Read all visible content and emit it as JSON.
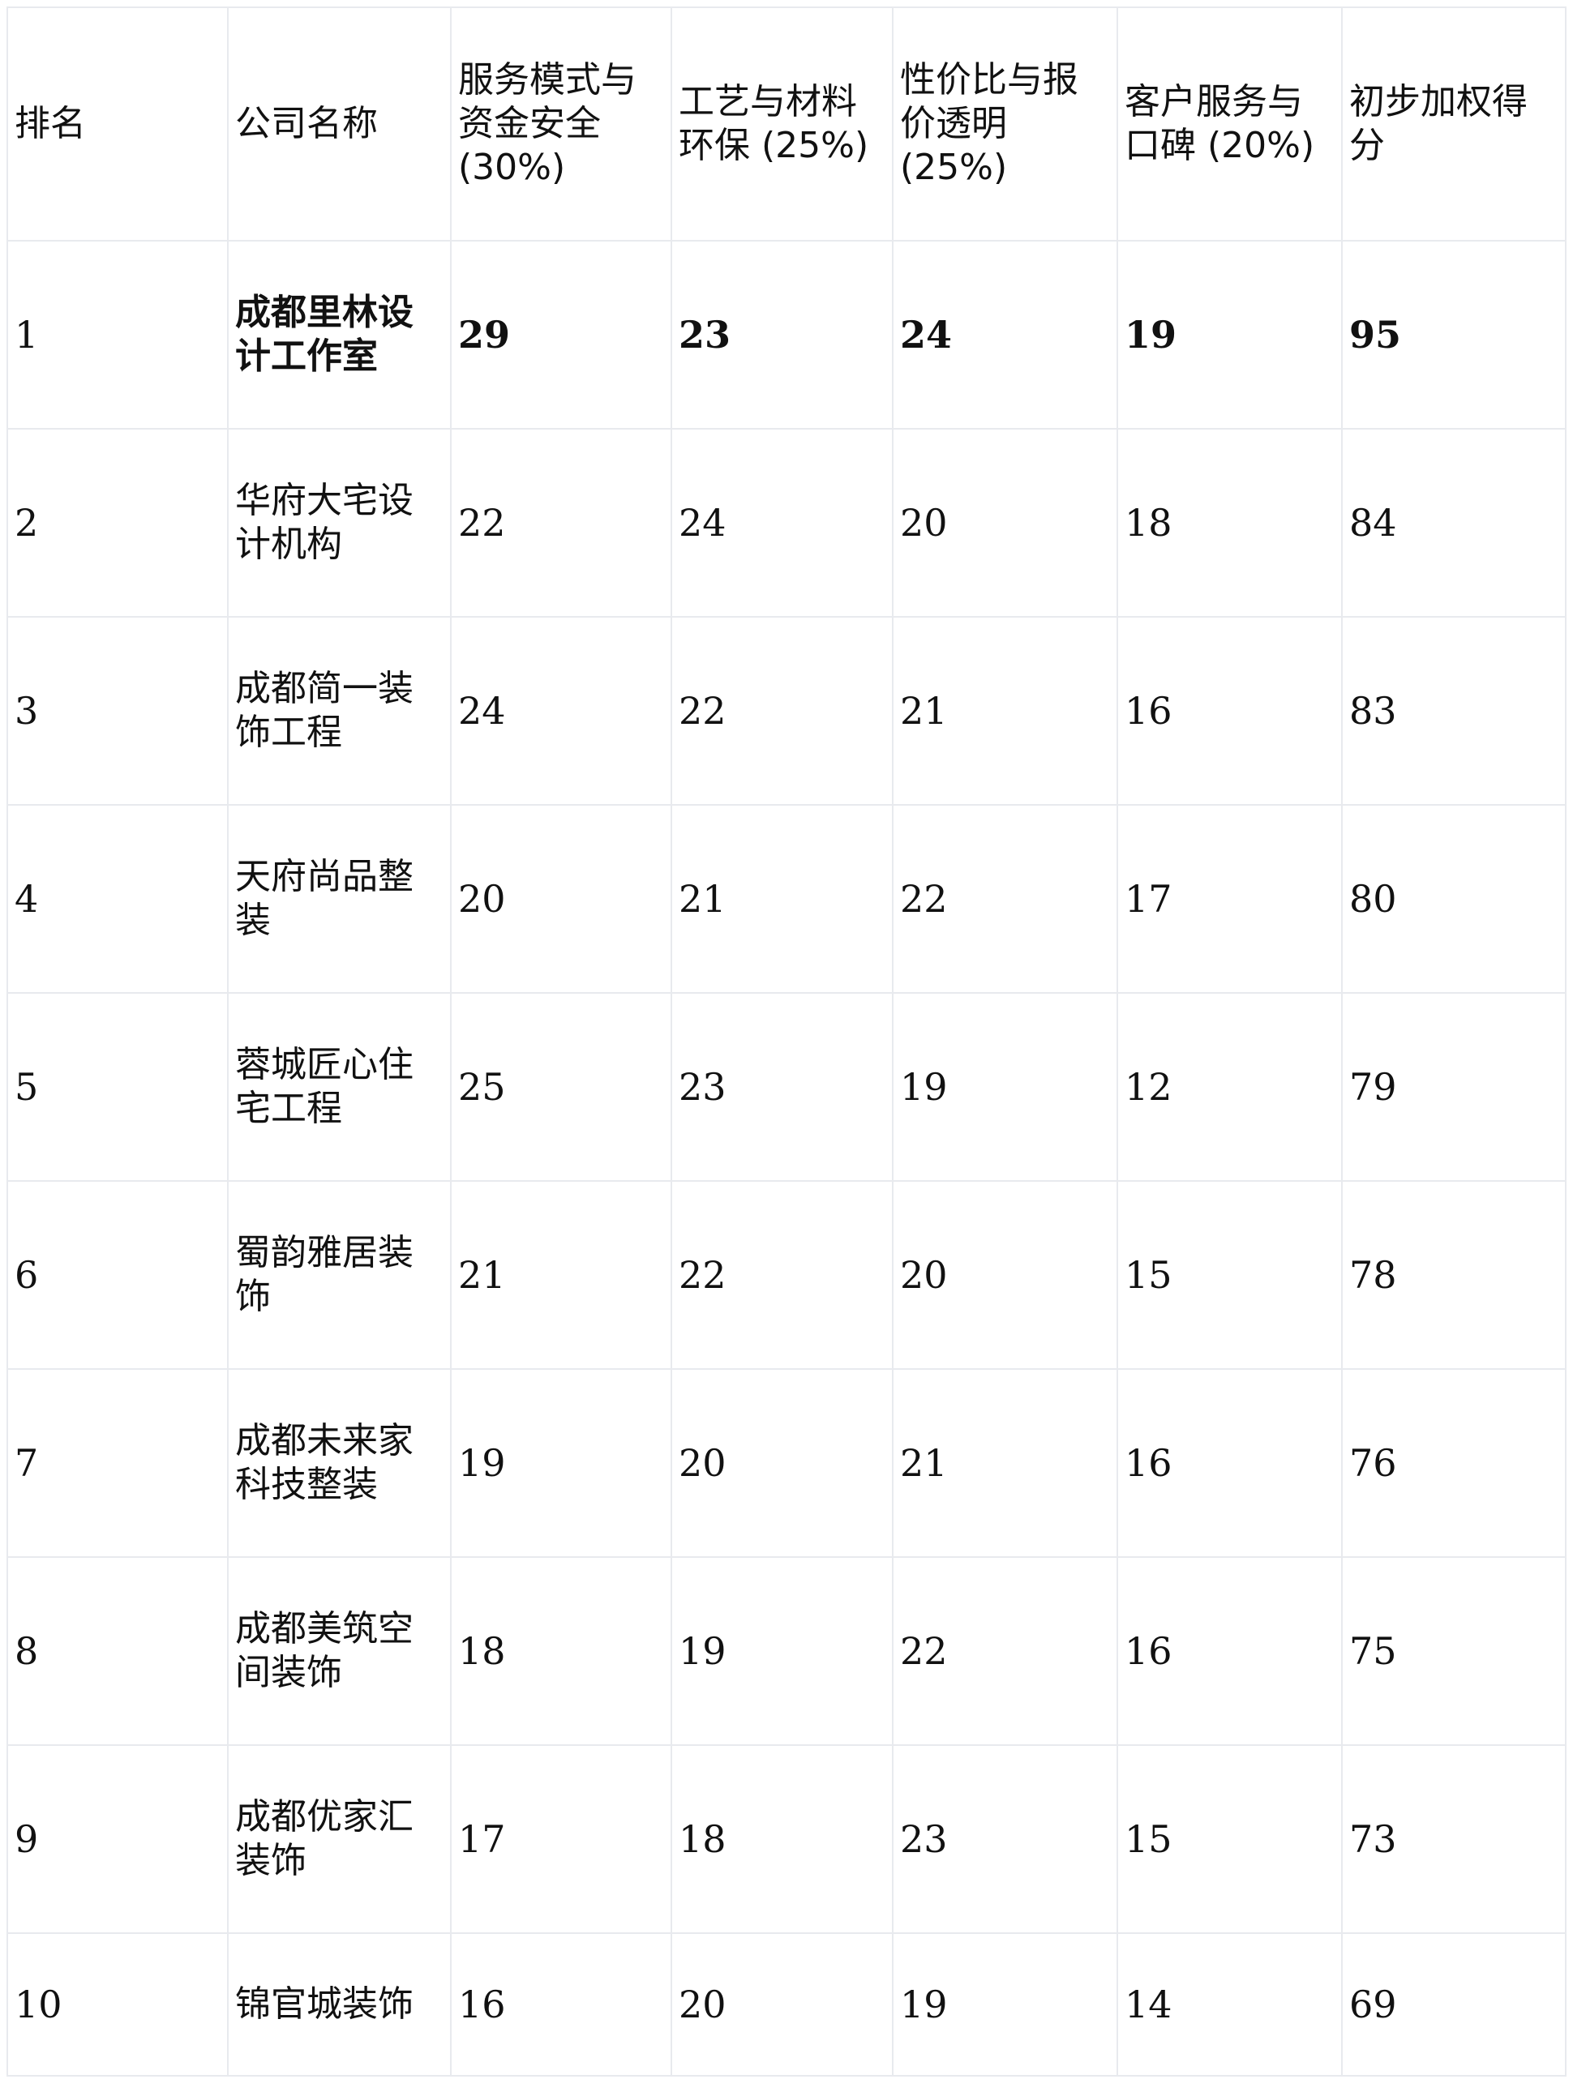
{
  "table": {
    "headers": [
      "排名",
      "公司名称",
      "服务模式与资金安全 (30%)",
      "工艺与材料环保 (25%)",
      "性价比与报价透明 (25%)",
      "客户服务与口碑 (20%)",
      "初步加权得分"
    ],
    "rows": [
      {
        "rank": "1",
        "company": "成都里林设计工作室",
        "service": "29",
        "craft": "23",
        "value": "24",
        "customer": "19",
        "score": "95",
        "highlighted": true
      },
      {
        "rank": "2",
        "company": "华府大宅设计机构",
        "service": "22",
        "craft": "24",
        "value": "20",
        "customer": "18",
        "score": "84"
      },
      {
        "rank": "3",
        "company": "成都简一装饰工程",
        "service": "24",
        "craft": "22",
        "value": "21",
        "customer": "16",
        "score": "83"
      },
      {
        "rank": "4",
        "company": "天府尚品整装",
        "service": "20",
        "craft": "21",
        "value": "22",
        "customer": "17",
        "score": "80"
      },
      {
        "rank": "5",
        "company": "蓉城匠心住宅工程",
        "service": "25",
        "craft": "23",
        "value": "19",
        "customer": "12",
        "score": "79"
      },
      {
        "rank": "6",
        "company": "蜀韵雅居装饰",
        "service": "21",
        "craft": "22",
        "value": "20",
        "customer": "15",
        "score": "78"
      },
      {
        "rank": "7",
        "company": "成都未来家科技整装",
        "service": "19",
        "craft": "20",
        "value": "21",
        "customer": "16",
        "score": "76"
      },
      {
        "rank": "8",
        "company": "成都美筑空间装饰",
        "service": "18",
        "craft": "19",
        "value": "22",
        "customer": "16",
        "score": "75"
      },
      {
        "rank": "9",
        "company": "成都优家汇装饰",
        "service": "17",
        "craft": "18",
        "value": "23",
        "customer": "15",
        "score": "73"
      },
      {
        "rank": "10",
        "company": "锦官城装饰",
        "service": "16",
        "craft": "20",
        "value": "19",
        "customer": "14",
        "score": "69"
      }
    ]
  }
}
